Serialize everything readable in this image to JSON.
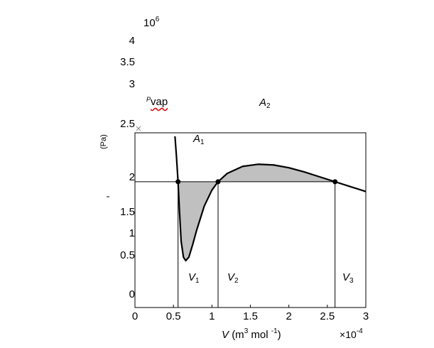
{
  "chart_data": {
    "type": "line",
    "x_exponent_label": "10-4",
    "y_exponent_label": "106",
    "xlabel": {
      "symbol": "V",
      "text": "(m3 mol -1)"
    },
    "ylabel_fragment": "(Pa)",
    "yticks_upper": [
      "4",
      "3.5",
      "3",
      "2.5"
    ],
    "yticks_lower": [
      "2",
      "1.5",
      "1",
      "0.5",
      "0"
    ],
    "xticks": [
      "0",
      "0.5",
      "1",
      "1.5",
      "2",
      "2.5",
      "3"
    ],
    "xlim": [
      0,
      3
    ],
    "ylim": [
      0,
      2.5
    ],
    "pvap_label": "vap",
    "pvap_prefix": "P",
    "pvap_value": 1.8,
    "area_labels": [
      {
        "text": "A",
        "sub": "1"
      },
      {
        "text": "A",
        "sub": "2"
      }
    ],
    "volume_labels": [
      {
        "text": "V",
        "sub": "1"
      },
      {
        "text": "V",
        "sub": "2"
      },
      {
        "text": "V",
        "sub": "3"
      }
    ],
    "v_points": [
      0.56,
      1.08,
      2.6
    ],
    "series": [
      {
        "x": [
          0.52,
          0.54,
          0.56,
          0.58,
          0.6,
          0.63,
          0.66,
          0.7,
          0.75,
          0.8,
          0.9,
          1.0,
          1.08,
          1.2,
          1.4,
          1.6,
          1.8,
          2.0,
          2.2,
          2.4,
          2.6,
          2.8,
          3.0
        ],
        "y": [
          2.45,
          2.15,
          1.8,
          1.35,
          0.95,
          0.72,
          0.67,
          0.72,
          0.9,
          1.1,
          1.45,
          1.68,
          1.8,
          1.92,
          2.02,
          2.05,
          2.04,
          2.0,
          1.94,
          1.87,
          1.8,
          1.73,
          1.66
        ]
      }
    ]
  }
}
